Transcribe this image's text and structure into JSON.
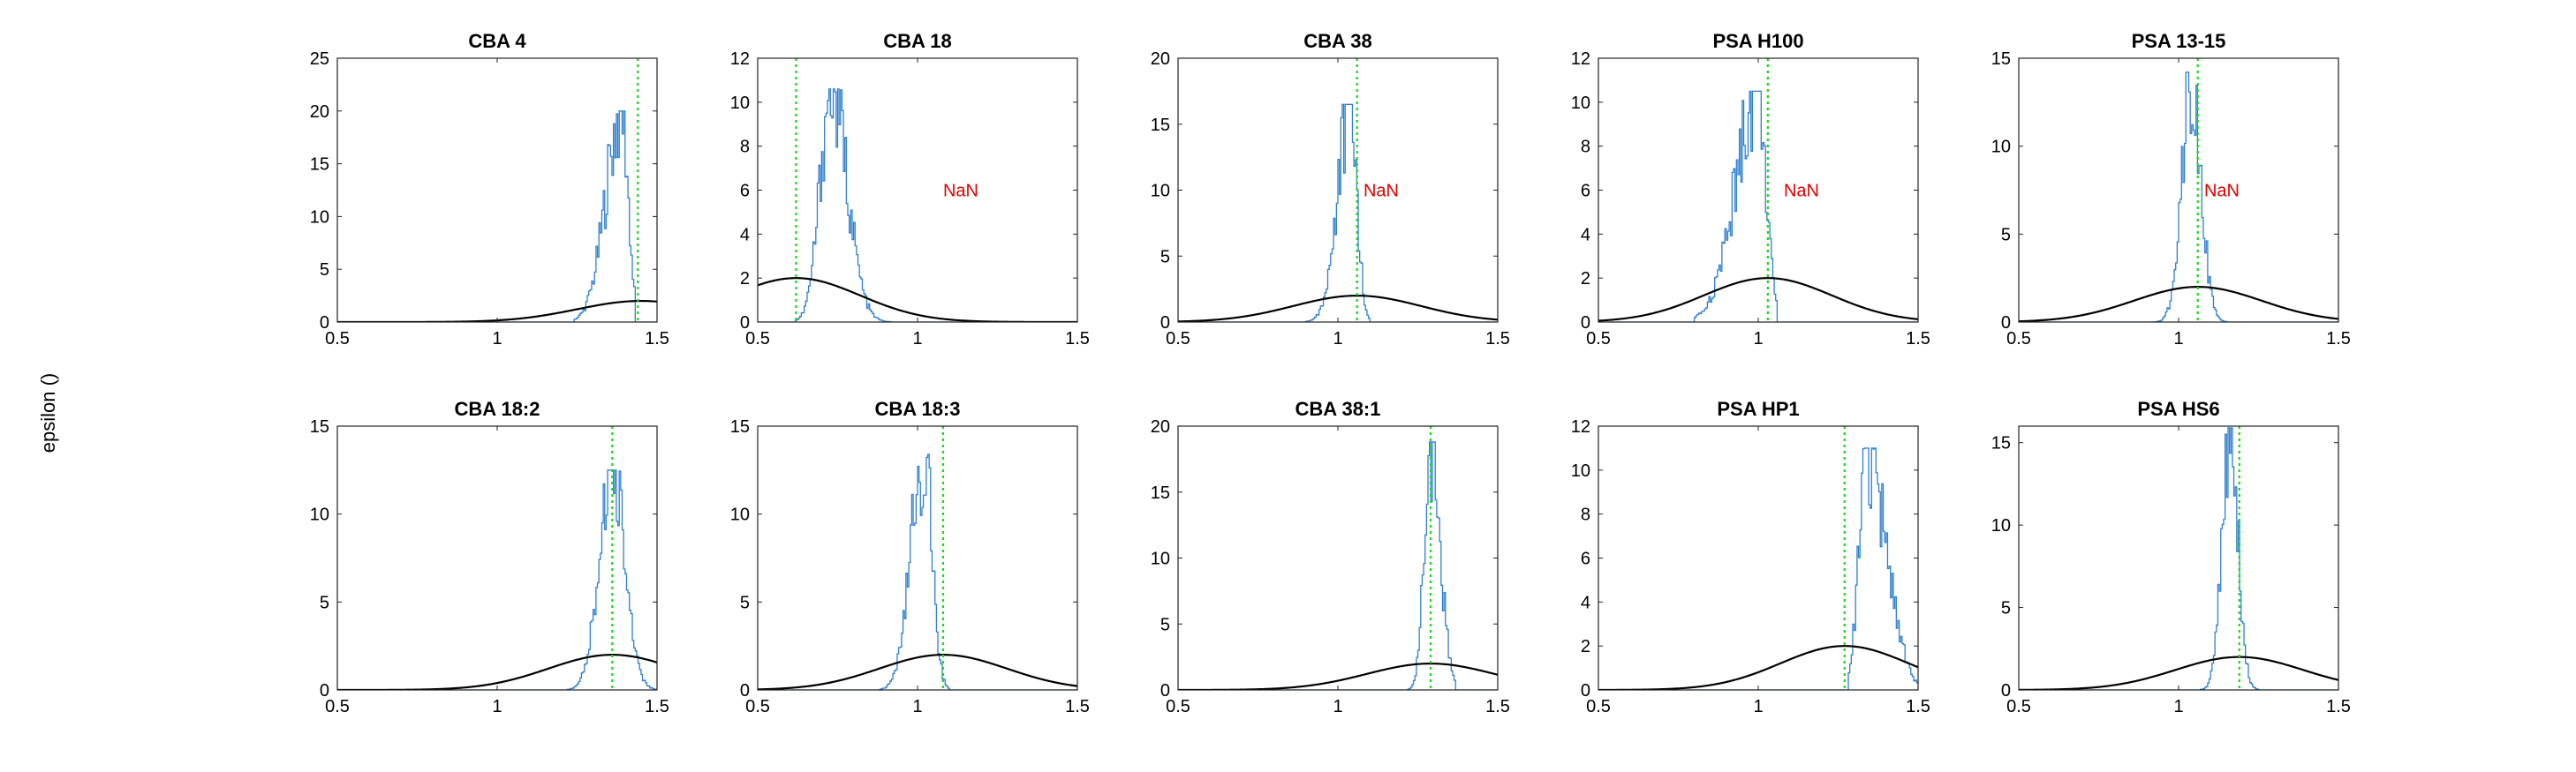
{
  "figure": {
    "ylabel": "epsilon ()"
  },
  "chart_data": [
    {
      "type": "histogram",
      "title": "CBA 4",
      "xlim": [
        0.5,
        1.5
      ],
      "ylim": [
        0,
        25
      ],
      "xticks": [
        0.5,
        1,
        1.5
      ],
      "xtick_labels": [
        "0.5",
        "1",
        "1.5"
      ],
      "yticks": [
        0,
        5,
        10,
        15,
        20,
        25
      ],
      "hist": {
        "center": 1.39,
        "left_sd": 0.05,
        "right_sd": 0.02,
        "peak": 20,
        "start": 1.24,
        "end": 1.43
      },
      "reference_line": 1.44,
      "prior": {
        "mean": 1.45,
        "sd": 0.2,
        "peak": 2
      },
      "annotation": ""
    },
    {
      "type": "histogram",
      "title": "CBA 18",
      "xlim": [
        0.5,
        1.5
      ],
      "ylim": [
        0,
        12
      ],
      "xticks": [
        0.5,
        1,
        1.5
      ],
      "xtick_labels": [
        "0.5",
        "1",
        "1.5"
      ],
      "yticks": [
        0,
        2,
        4,
        6,
        8,
        10,
        12
      ],
      "hist": {
        "center": 0.73,
        "left_sd": 0.035,
        "right_sd": 0.05,
        "peak": 10.6,
        "start": 0.62,
        "end": 0.92
      },
      "reference_line": 0.62,
      "prior": {
        "mean": 0.62,
        "sd": 0.2,
        "peak": 2
      },
      "annotation": "NaN"
    },
    {
      "type": "histogram",
      "title": "CBA 38",
      "xlim": [
        0.5,
        1.5
      ],
      "ylim": [
        0,
        20
      ],
      "xticks": [
        0.5,
        1,
        1.5
      ],
      "xtick_labels": [
        "0.5",
        "1",
        "1.5"
      ],
      "yticks": [
        0,
        5,
        10,
        15,
        20
      ],
      "hist": {
        "center": 1.04,
        "left_sd": 0.04,
        "right_sd": 0.02,
        "peak": 16.5,
        "start": 0.9,
        "end": 1.1
      },
      "reference_line": 1.06,
      "prior": {
        "mean": 1.06,
        "sd": 0.2,
        "peak": 2
      },
      "annotation": "NaN"
    },
    {
      "type": "histogram",
      "title": "PSA H100",
      "xlim": [
        0.5,
        1.5
      ],
      "ylim": [
        0,
        12
      ],
      "xticks": [
        0.5,
        1,
        1.5
      ],
      "xtick_labels": [
        "0.5",
        "1",
        "1.5"
      ],
      "yticks": [
        0,
        2,
        4,
        6,
        8,
        10,
        12
      ],
      "hist": {
        "center": 1.0,
        "left_sd": 0.07,
        "right_sd": 0.025,
        "peak": 10.5,
        "start": 0.8,
        "end": 1.06
      },
      "reference_line": 1.03,
      "prior": {
        "mean": 1.03,
        "sd": 0.2,
        "peak": 2
      },
      "annotation": "NaN"
    },
    {
      "type": "histogram",
      "title": "PSA 13-15",
      "xlim": [
        0.5,
        1.5
      ],
      "ylim": [
        0,
        15
      ],
      "xticks": [
        0.5,
        1,
        1.5
      ],
      "xtick_labels": [
        "0.5",
        "1",
        "1.5"
      ],
      "yticks": [
        0,
        5,
        10,
        15
      ],
      "hist": {
        "center": 1.04,
        "left_sd": 0.03,
        "right_sd": 0.03,
        "peak": 14.2,
        "start": 0.9,
        "end": 1.15
      },
      "reference_line": 1.06,
      "prior": {
        "mean": 1.06,
        "sd": 0.2,
        "peak": 2
      },
      "annotation": "NaN"
    },
    {
      "type": "histogram",
      "title": "CBA 18:2",
      "xlim": [
        0.5,
        1.5
      ],
      "ylim": [
        0,
        15
      ],
      "xticks": [
        0.5,
        1,
        1.5
      ],
      "xtick_labels": [
        "0.5",
        "1",
        "1.5"
      ],
      "yticks": [
        0,
        5,
        10,
        15
      ],
      "hist": {
        "center": 1.36,
        "left_sd": 0.04,
        "right_sd": 0.04,
        "peak": 12.5,
        "start": 1.22,
        "end": 1.5
      },
      "reference_line": 1.36,
      "prior": {
        "mean": 1.36,
        "sd": 0.2,
        "peak": 2
      },
      "annotation": ""
    },
    {
      "type": "histogram",
      "title": "CBA 18:3",
      "xlim": [
        0.5,
        1.5
      ],
      "ylim": [
        0,
        15
      ],
      "xticks": [
        0.5,
        1,
        1.5
      ],
      "xtick_labels": [
        "0.5",
        "1",
        "1.5"
      ],
      "yticks": [
        0,
        5,
        10,
        15
      ],
      "hist": {
        "center": 1.02,
        "left_sd": 0.04,
        "right_sd": 0.025,
        "peak": 13.4,
        "start": 0.88,
        "end": 1.1
      },
      "reference_line": 1.08,
      "prior": {
        "mean": 1.08,
        "sd": 0.2,
        "peak": 2
      },
      "annotation": ""
    },
    {
      "type": "histogram",
      "title": "CBA 38:1",
      "xlim": [
        0.5,
        1.5
      ],
      "ylim": [
        0,
        20
      ],
      "xticks": [
        0.5,
        1,
        1.5
      ],
      "xtick_labels": [
        "0.5",
        "1",
        "1.5"
      ],
      "yticks": [
        0,
        5,
        10,
        15,
        20
      ],
      "hist": {
        "center": 1.29,
        "left_sd": 0.02,
        "right_sd": 0.03,
        "peak": 18.8,
        "start": 1.22,
        "end": 1.37
      },
      "reference_line": 1.29,
      "prior": {
        "mean": 1.29,
        "sd": 0.2,
        "peak": 2
      },
      "annotation": ""
    },
    {
      "type": "histogram",
      "title": "PSA HP1",
      "xlim": [
        0.5,
        1.5
      ],
      "ylim": [
        0,
        12
      ],
      "xticks": [
        0.5,
        1,
        1.5
      ],
      "xtick_labels": [
        "0.5",
        "1",
        "1.5"
      ],
      "yticks": [
        0,
        2,
        4,
        6,
        8,
        10,
        12
      ],
      "hist": {
        "center": 1.34,
        "left_sd": 0.025,
        "right_sd": 0.06,
        "peak": 11,
        "start": 1.28,
        "end": 1.5
      },
      "reference_line": 1.27,
      "prior": {
        "mean": 1.27,
        "sd": 0.2,
        "peak": 2
      },
      "annotation": ""
    },
    {
      "type": "histogram",
      "title": "PSA HS6",
      "xlim": [
        0.5,
        1.5
      ],
      "ylim": [
        0,
        16
      ],
      "xticks": [
        0.5,
        1,
        1.5
      ],
      "xtick_labels": [
        "0.5",
        "1",
        "1.5"
      ],
      "yticks": [
        0,
        5,
        10,
        15
      ],
      "hist": {
        "center": 1.16,
        "left_sd": 0.025,
        "right_sd": 0.025,
        "peak": 15.9,
        "start": 1.07,
        "end": 1.25
      },
      "reference_line": 1.19,
      "prior": {
        "mean": 1.19,
        "sd": 0.2,
        "peak": 2
      },
      "annotation": ""
    }
  ]
}
